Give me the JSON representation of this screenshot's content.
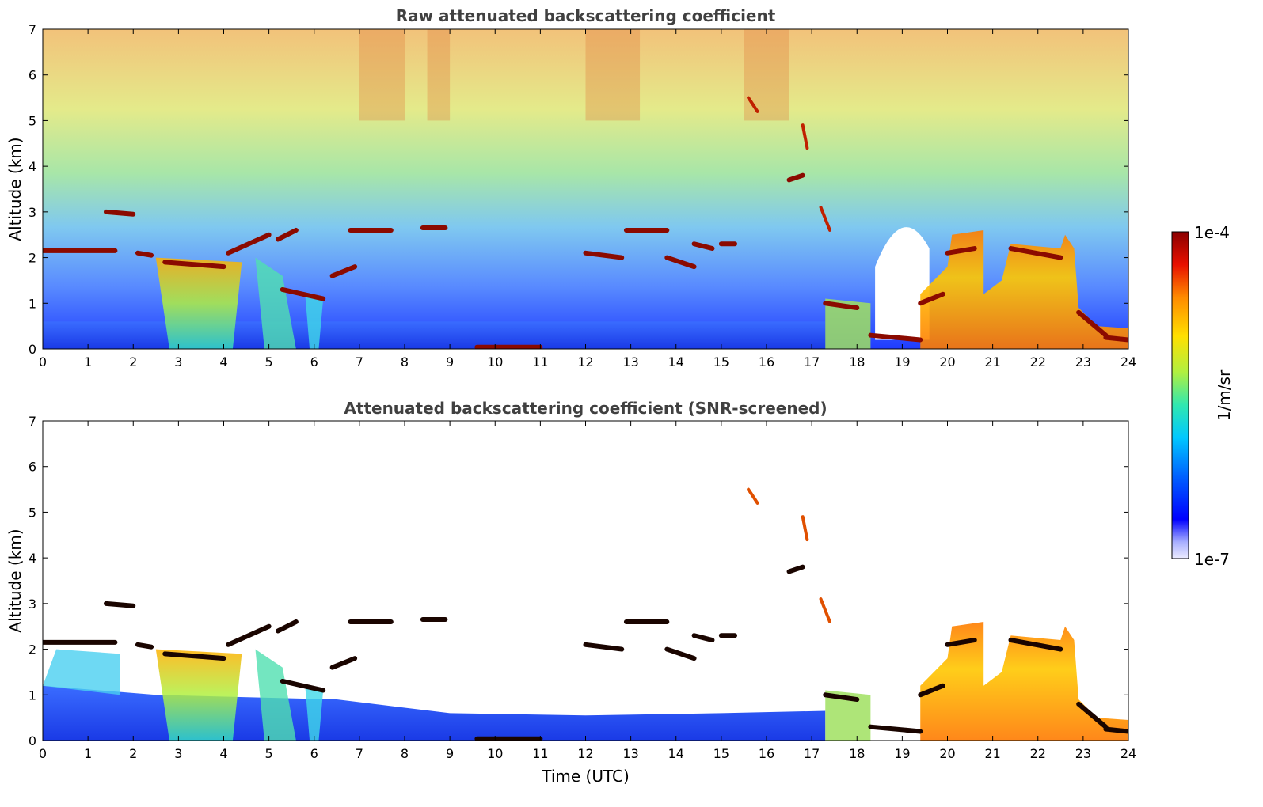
{
  "chart_data": [
    {
      "type": "heatmap",
      "title": "Raw attenuated backscattering coefficient",
      "xlabel": "",
      "ylabel": "Altitude (km)",
      "xlim": [
        0,
        24
      ],
      "ylim": [
        0,
        7
      ],
      "xticks": [
        "0",
        "1",
        "2",
        "3",
        "4",
        "5",
        "6",
        "7",
        "8",
        "9",
        "10",
        "11",
        "12",
        "13",
        "14",
        "15",
        "16",
        "17",
        "18",
        "19",
        "20",
        "21",
        "22",
        "23",
        "24"
      ],
      "yticks": [
        "0",
        "1",
        "2",
        "3",
        "4",
        "5",
        "6",
        "7"
      ],
      "grid": false
    },
    {
      "type": "heatmap",
      "title": "Attenuated backscattering coefficient (SNR-screened)",
      "xlabel": "Time (UTC)",
      "ylabel": "Altitude (km)",
      "xlim": [
        0,
        24
      ],
      "ylim": [
        0,
        7
      ],
      "xticks": [
        "0",
        "1",
        "2",
        "3",
        "4",
        "5",
        "6",
        "7",
        "8",
        "9",
        "10",
        "11",
        "12",
        "13",
        "14",
        "15",
        "16",
        "17",
        "18",
        "19",
        "20",
        "21",
        "22",
        "23",
        "24"
      ],
      "yticks": [
        "0",
        "1",
        "2",
        "3",
        "4",
        "5",
        "6",
        "7"
      ],
      "grid": false
    }
  ],
  "colorbar": {
    "label": "1/m/sr",
    "max_label": "1e-4",
    "min_label": "1e-7",
    "colors": [
      "#e8e8ff",
      "#aab4ff",
      "#0000ff",
      "#0070ff",
      "#00d0ff",
      "#40e8a0",
      "#b0f040",
      "#ffe000",
      "#ff8000",
      "#e01000",
      "#8b0000"
    ]
  }
}
